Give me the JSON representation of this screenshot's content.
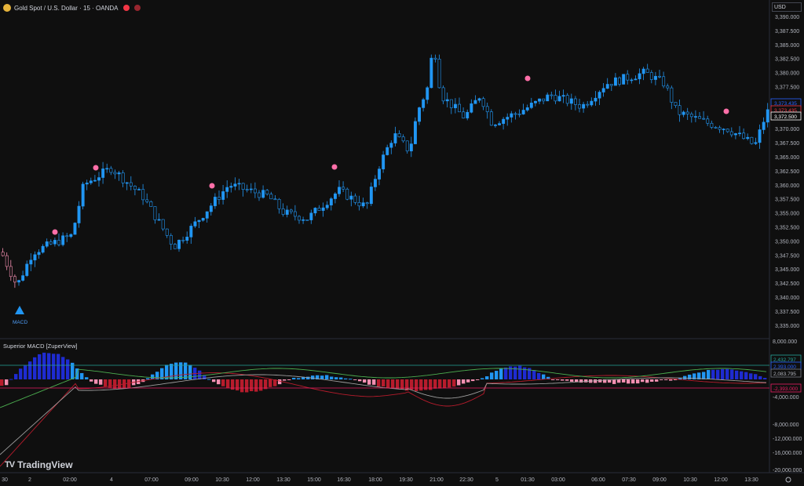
{
  "header": {
    "title": "Gold Spot / U.S. Dollar · 15 · OANDA",
    "icon": "gold-coin-icon",
    "badges": [
      "red-flag-icon",
      "red-circle-icon"
    ]
  },
  "price_axis": {
    "currency": "USD",
    "ticks": [
      "3,390.000",
      "3,387.500",
      "3,385.000",
      "3,382.500",
      "3,380.000",
      "3,377.500",
      "3,375.000",
      "3,372.500",
      "3,370.000",
      "3,367.500",
      "3,365.000",
      "3,362.500",
      "3,360.000",
      "3,357.500",
      "3,355.000",
      "3,352.500",
      "3,350.000",
      "3,347.500",
      "3,345.000",
      "3,342.500",
      "3,340.000",
      "3,337.500",
      "3,335.000"
    ],
    "badges": [
      {
        "text": "3,373.435",
        "color": "#2962ff"
      },
      {
        "text": "3,373.435",
        "color": "#f23645"
      },
      {
        "text": "3,372.500",
        "color": "#ffffff"
      }
    ]
  },
  "indicator": {
    "title": "Superior MACD [ZuperView]",
    "ticks": [
      "8,000.000",
      "4,000.000",
      "-4,000.000",
      "-8,000.000",
      "-12,000.000",
      "-16,000.000",
      "-20,000.000"
    ],
    "badges": [
      {
        "text": "2,432.797",
        "color": "#26a69a"
      },
      {
        "text": "2,393.000",
        "color": "#2962ff"
      },
      {
        "text": "2,083.795",
        "color": "#787b86"
      },
      {
        "text": "-2,393.000",
        "color": "#e91e63"
      }
    ]
  },
  "time_axis": {
    "labels": [
      "30",
      "2",
      "02:00",
      "4",
      "07:00",
      "09:00",
      "10:30",
      "12:00",
      "13:30",
      "15:00",
      "16:30",
      "18:00",
      "19:30",
      "21:00",
      "22:30",
      "5",
      "01:30",
      "03:00",
      "06:00",
      "07:30",
      "09:00",
      "10:30",
      "12:00",
      "13:30"
    ]
  },
  "signal_label": "MACD",
  "brand": "TradingView",
  "colors": {
    "up": "#2196f3",
    "down": "#f48fb1",
    "dot": "#ff6fa8"
  }
}
